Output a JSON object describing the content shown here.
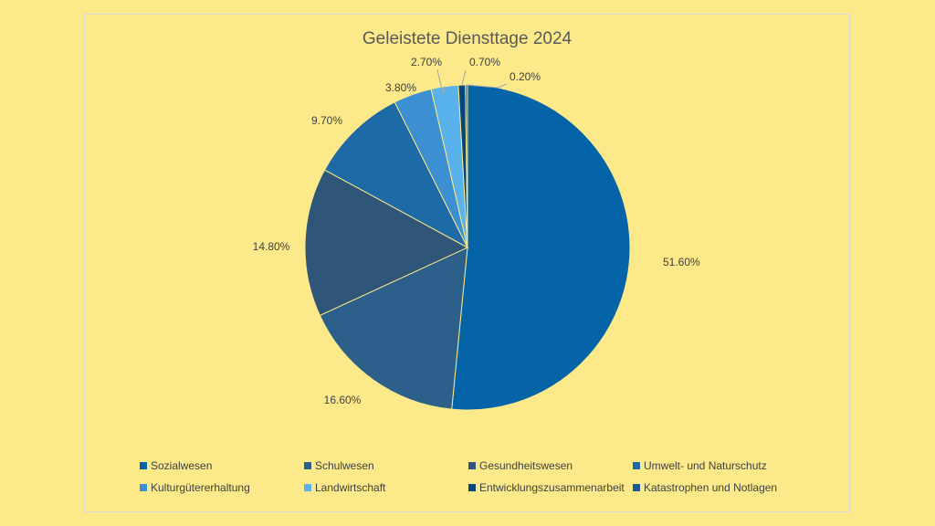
{
  "chart_data": {
    "type": "pie",
    "title": "Geleistete Diensttage 2024",
    "categories": [
      "Sozialwesen",
      "Schulwesen",
      "Gesundheitswesen",
      "Umwelt- und Naturschutz",
      "Kulturgütererhaltung",
      "Landwirtschaft",
      "Entwicklungszusammenarbeit",
      "Katastrophen und Notlagen"
    ],
    "values": [
      51.6,
      16.6,
      14.8,
      9.7,
      3.8,
      2.7,
      0.7,
      0.2
    ],
    "labels": [
      "51.60%",
      "16.60%",
      "14.80%",
      "9.70%",
      "3.80%",
      "2.70%",
      "0.70%",
      "0.20%"
    ],
    "colors": [
      "#0563a8",
      "#2c5f8a",
      "#2f5578",
      "#1e6aa6",
      "#3c8fd0",
      "#5ab2ec",
      "#07457a",
      "#1a5a91"
    ],
    "legend_position": "bottom",
    "start_angle_deg": 0,
    "direction": "clockwise"
  }
}
